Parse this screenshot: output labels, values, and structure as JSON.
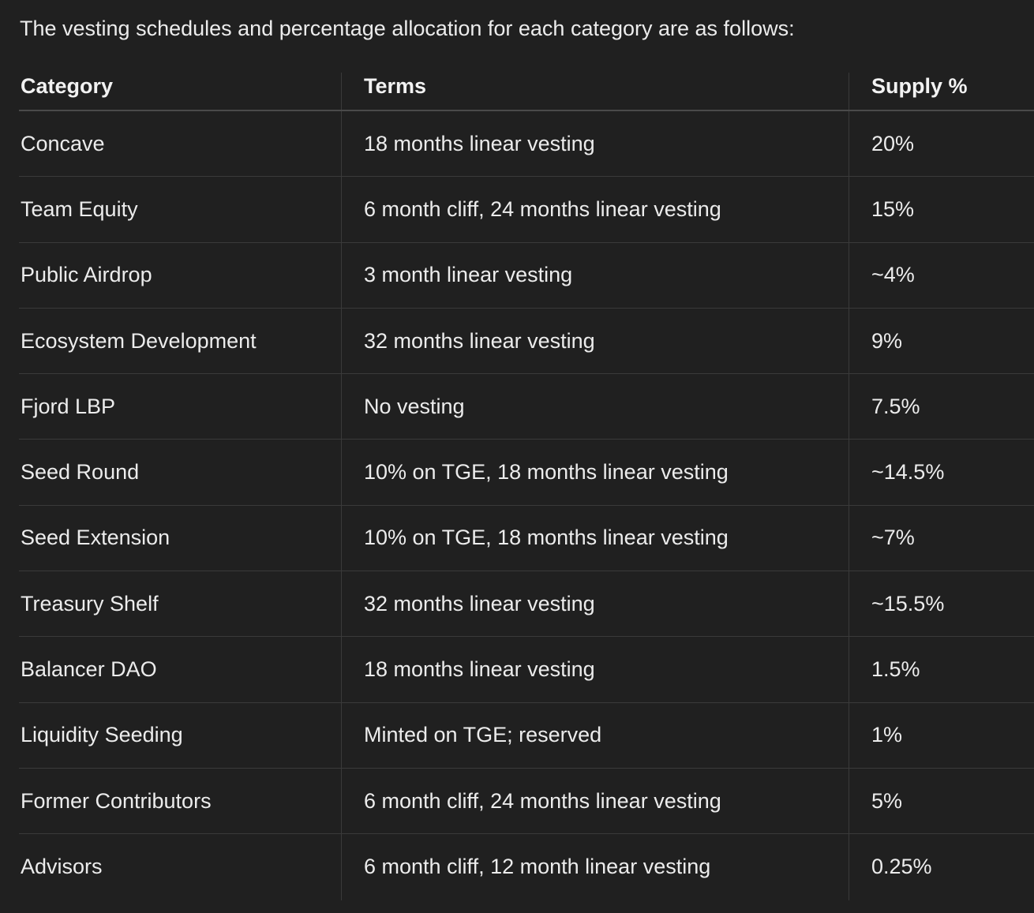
{
  "intro": "The vesting schedules and percentage allocation for each category are as follows:",
  "table": {
    "headers": [
      "Category",
      "Terms",
      "Supply %"
    ],
    "rows": [
      [
        "Concave",
        "18 months linear vesting",
        "20%"
      ],
      [
        "Team Equity",
        "6 month cliff, 24 months linear vesting",
        "15%"
      ],
      [
        "Public Airdrop",
        "3 month linear vesting",
        "~4%"
      ],
      [
        "Ecosystem Development",
        "32 months linear vesting",
        "9%"
      ],
      [
        "Fjord LBP",
        "No vesting",
        "7.5%"
      ],
      [
        "Seed Round",
        "10% on TGE, 18 months linear vesting",
        "~14.5%"
      ],
      [
        "Seed Extension",
        "10% on TGE, 18 months linear vesting",
        "~7%"
      ],
      [
        "Treasury Shelf",
        "32 months linear vesting",
        "~15.5%"
      ],
      [
        "Balancer DAO",
        "18 months linear vesting",
        "1.5%"
      ],
      [
        "Liquidity Seeding",
        "Minted on TGE; reserved",
        "1%"
      ],
      [
        "Former Contributors",
        "6 month cliff, 24 months linear vesting",
        "5%"
      ],
      [
        "Advisors",
        "6 month cliff, 12 month linear vesting",
        "0.25%"
      ]
    ]
  },
  "colors": {
    "background": "#202020",
    "text": "#ececec",
    "grid": "#3a3a3a"
  }
}
